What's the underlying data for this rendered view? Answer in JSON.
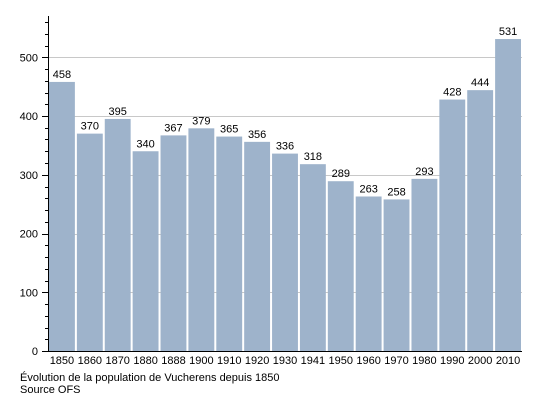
{
  "chart_data": {
    "type": "bar",
    "categories": [
      "1850",
      "1860",
      "1870",
      "1880",
      "1888",
      "1900",
      "1910",
      "1920",
      "1930",
      "1941",
      "1950",
      "1960",
      "1970",
      "1980",
      "1990",
      "2000",
      "2010"
    ],
    "values": [
      458,
      370,
      395,
      340,
      367,
      379,
      365,
      356,
      336,
      318,
      289,
      263,
      258,
      293,
      428,
      444,
      531
    ],
    "data_labels": [
      "458",
      "370",
      "395",
      "340",
      "367",
      "379",
      "365",
      "356",
      "336",
      "318",
      "289",
      "263",
      "258",
      "293",
      "428",
      "444",
      "531"
    ],
    "ylim": [
      0,
      560
    ],
    "yticks": [
      0,
      100,
      200,
      300,
      400,
      500
    ],
    "ytick_labels": [
      "0",
      "100",
      "200",
      "300",
      "400",
      "500"
    ],
    "grid": true,
    "bar_color": "#9eb3cb",
    "grid_color": "#c8c8c8"
  },
  "caption": {
    "line1": "Évolution de la population de Vucherens depuis 1850",
    "line2": "Source OFS"
  }
}
